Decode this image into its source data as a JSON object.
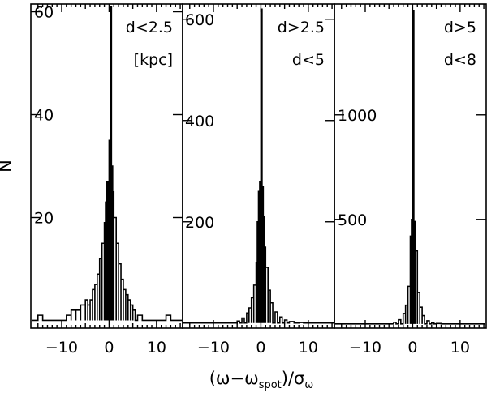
{
  "chart_data": {
    "type": "histogram",
    "ylabel": "N",
    "xlabel_parts": {
      "open": "(ω−ω",
      "subscript": "spot",
      "mid": ")/σ",
      "sigma_subscript": "ω"
    },
    "xlim": [
      -16.5,
      15.5
    ],
    "x_tick_values": [
      -10,
      0,
      10
    ],
    "x_tick_labels": [
      "−10",
      "0",
      "10"
    ],
    "panels": [
      {
        "name": "d<2.5 kpc",
        "labels": [
          "d<2.5",
          "[kpc]"
        ],
        "ylim": [
          -1.5,
          61.5
        ],
        "y_ticks": [
          20,
          40,
          60
        ],
        "y_tick_labels": [
          "20",
          "40",
          "60"
        ],
        "bins": [
          [
            -15,
            1
          ],
          [
            -9,
            1
          ],
          [
            -8,
            2
          ],
          [
            -7,
            2
          ],
          [
            -6,
            3
          ],
          [
            -5,
            4
          ],
          [
            -4.5,
            3
          ],
          [
            -4,
            4
          ],
          [
            -3.5,
            6
          ],
          [
            -3,
            7
          ],
          [
            -2.5,
            9
          ],
          [
            -2,
            12
          ],
          [
            -1.5,
            15
          ],
          [
            -1,
            19
          ],
          [
            -0.75,
            23
          ],
          [
            -0.5,
            27
          ],
          [
            -0.25,
            22
          ],
          [
            0,
            35
          ],
          [
            0.25,
            61
          ],
          [
            0.5,
            30
          ],
          [
            0.75,
            25
          ],
          [
            1,
            20
          ],
          [
            1.5,
            15
          ],
          [
            2,
            11
          ],
          [
            2.5,
            8
          ],
          [
            3,
            6
          ],
          [
            3.5,
            5
          ],
          [
            4,
            4
          ],
          [
            4.5,
            3
          ],
          [
            5,
            2
          ],
          [
            6,
            1
          ],
          [
            12,
            1
          ]
        ]
      },
      {
        "name": "2.5<d<5",
        "labels": [
          "d>2.5",
          "d<5"
        ],
        "ylim": [
          -10,
          630
        ],
        "y_ticks": [
          200,
          400,
          600
        ],
        "y_tick_labels": [
          "200",
          "400",
          "600"
        ],
        "bins": [
          [
            -5,
            4
          ],
          [
            -4,
            10
          ],
          [
            -3,
            20
          ],
          [
            -2.5,
            30
          ],
          [
            -2,
            50
          ],
          [
            -1.5,
            75
          ],
          [
            -1,
            120
          ],
          [
            -0.75,
            200
          ],
          [
            -0.5,
            260
          ],
          [
            -0.25,
            280
          ],
          [
            0,
            620
          ],
          [
            0.25,
            270
          ],
          [
            0.5,
            210
          ],
          [
            0.75,
            150
          ],
          [
            1,
            110
          ],
          [
            1.5,
            65
          ],
          [
            2,
            40
          ],
          [
            3,
            22
          ],
          [
            4,
            12
          ],
          [
            5,
            6
          ],
          [
            6,
            3
          ],
          [
            8,
            1
          ]
        ]
      },
      {
        "name": "5<d<8",
        "labels": [
          "d>5",
          "d<8"
        ],
        "ylim": [
          -20,
          1530
        ],
        "y_ticks": [
          500,
          1000
        ],
        "y_tick_labels": [
          "500",
          "1000"
        ],
        "bins": [
          [
            -4,
            8
          ],
          [
            -3,
            20
          ],
          [
            -2,
            50
          ],
          [
            -1.5,
            90
          ],
          [
            -1,
            180
          ],
          [
            -0.5,
            420
          ],
          [
            -0.25,
            500
          ],
          [
            0,
            1500
          ],
          [
            0.25,
            490
          ],
          [
            0.5,
            350
          ],
          [
            1,
            150
          ],
          [
            1.5,
            80
          ],
          [
            2,
            40
          ],
          [
            3,
            15
          ],
          [
            4,
            5
          ],
          [
            5,
            2
          ]
        ]
      }
    ]
  }
}
